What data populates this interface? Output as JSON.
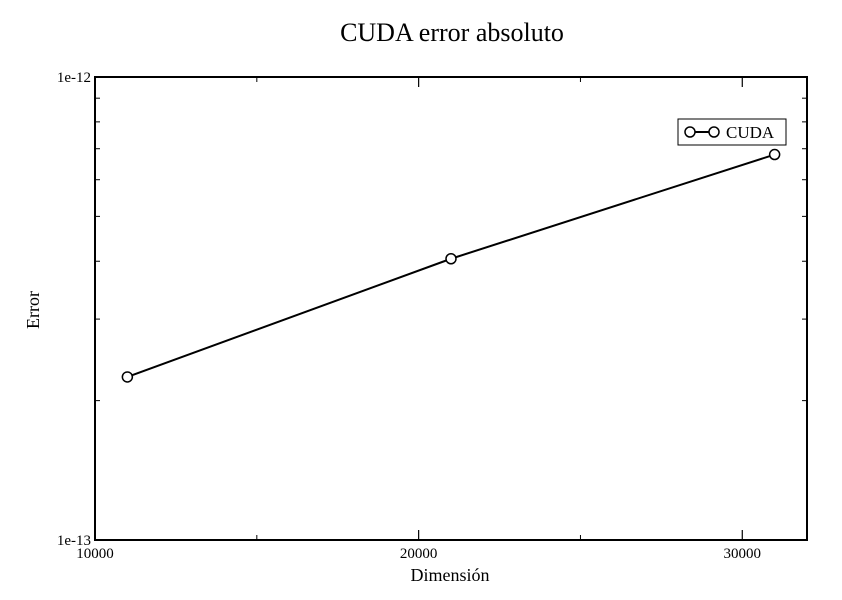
{
  "chart_data": {
    "type": "line",
    "title": "CUDA error absoluto",
    "xlabel": "Dimensión",
    "ylabel": "Error",
    "x_scale": "linear",
    "y_scale": "log",
    "xlim": [
      10000,
      32000
    ],
    "ylim": [
      1e-13,
      1e-12
    ],
    "x_ticks": [
      {
        "value": 10000,
        "label": "10000"
      },
      {
        "value": 20000,
        "label": "20000"
      },
      {
        "value": 30000,
        "label": "30000"
      }
    ],
    "y_ticks": [
      {
        "value": 1e-13,
        "label": "1e-13"
      },
      {
        "value": 1e-12,
        "label": "1e-12"
      }
    ],
    "y_minor_ticks": [
      2e-13,
      3e-13,
      4e-13,
      5e-13,
      6e-13,
      7e-13,
      8e-13,
      9e-13
    ],
    "grid": false,
    "legend_position": "top-right",
    "series": [
      {
        "name": "CUDA",
        "color": "#000000",
        "marker": "open-circle",
        "x": [
          11000,
          21000,
          31000
        ],
        "y": [
          2.25e-13,
          4.05e-13,
          6.8e-13
        ]
      }
    ]
  }
}
